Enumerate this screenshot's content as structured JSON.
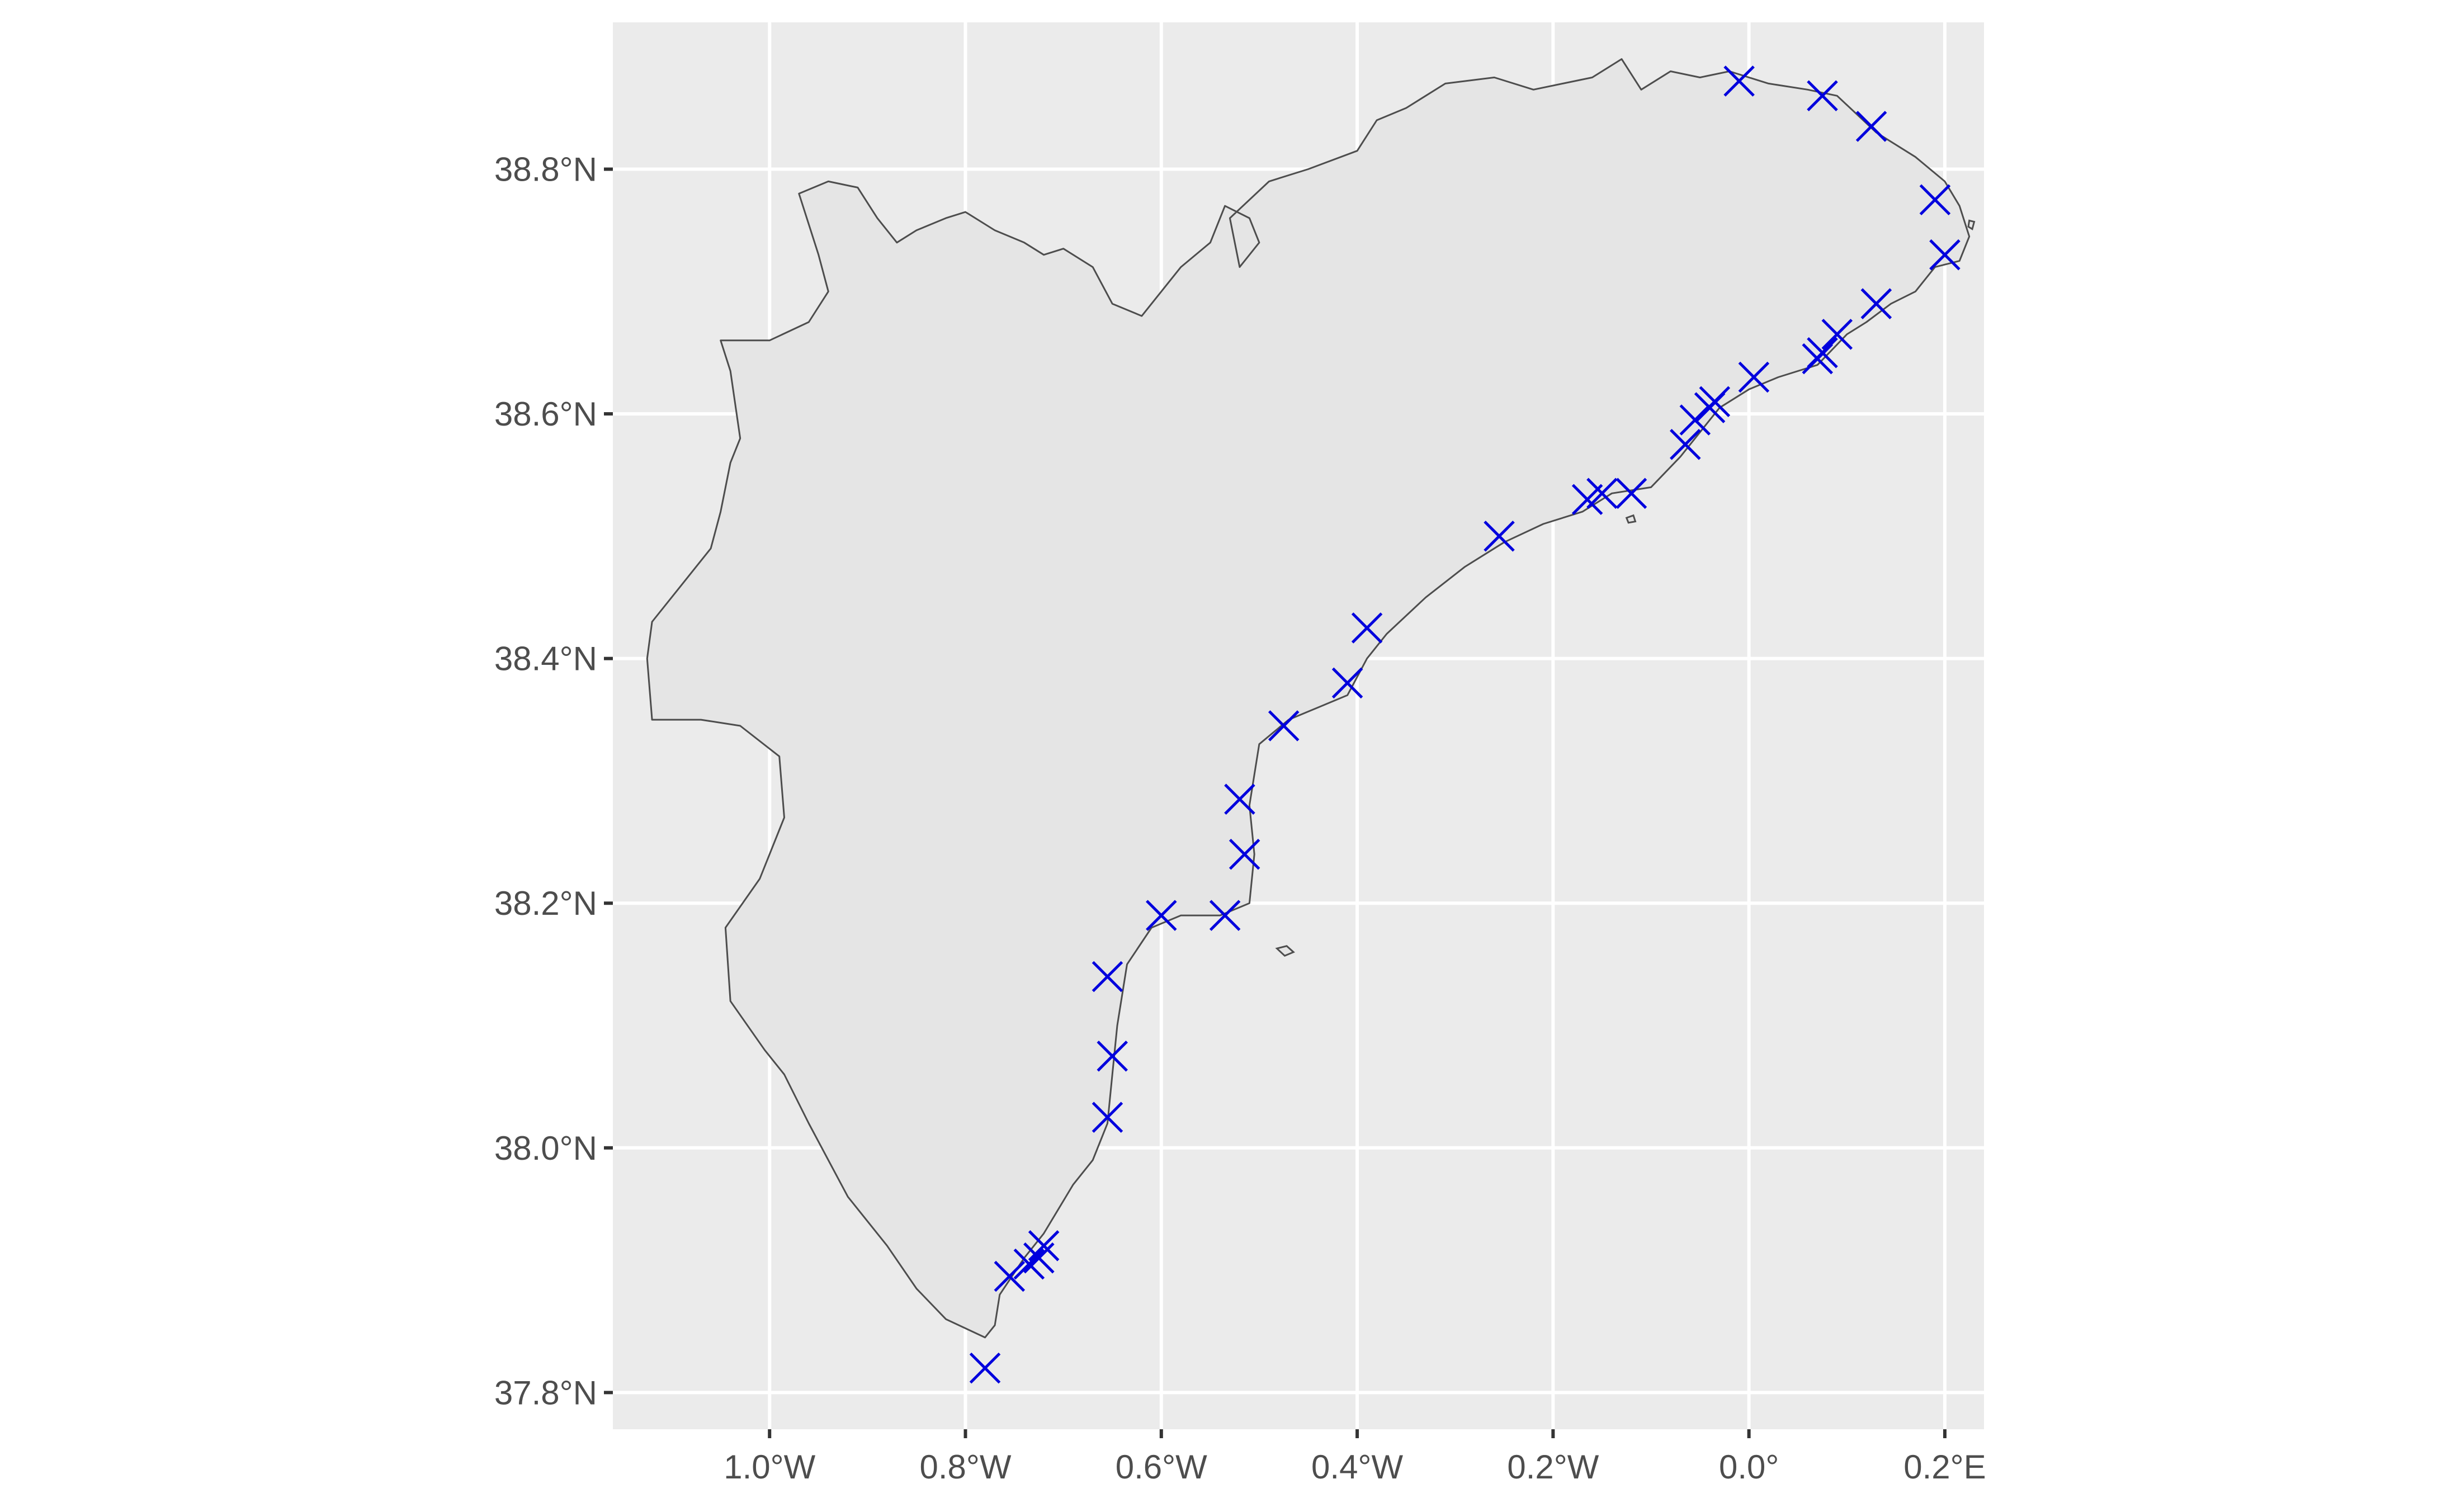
{
  "chart_data": {
    "type": "scatter",
    "title": "",
    "xlabel": "",
    "ylabel": "",
    "xlim": [
      -1.16,
      0.24
    ],
    "ylim": [
      37.77,
      38.92
    ],
    "grid": true,
    "background_color": "#ebebeb",
    "land_color": "#e5e5e5",
    "outline_color": "#4d4d4d",
    "marker": "x",
    "marker_color": "#0000dd",
    "x_ticks": [
      {
        "value": -1.0,
        "label": "1.0°W"
      },
      {
        "value": -0.8,
        "label": "0.8°W"
      },
      {
        "value": -0.6,
        "label": "0.6°W"
      },
      {
        "value": -0.4,
        "label": "0.4°W"
      },
      {
        "value": -0.2,
        "label": "0.2°W"
      },
      {
        "value": 0.0,
        "label": "0.0°"
      },
      {
        "value": 0.2,
        "label": "0.2°E"
      }
    ],
    "y_ticks": [
      {
        "value": 37.8,
        "label": "37.8°N"
      },
      {
        "value": 38.0,
        "label": "38.0°N"
      },
      {
        "value": 38.2,
        "label": "38.2°N"
      },
      {
        "value": 38.4,
        "label": "38.4°N"
      },
      {
        "value": 38.6,
        "label": "38.6°N"
      },
      {
        "value": 38.8,
        "label": "38.8°N"
      }
    ],
    "region_outline": [
      [
        -0.97,
        38.78
      ],
      [
        -0.94,
        38.79
      ],
      [
        -0.91,
        38.785
      ],
      [
        -0.89,
        38.76
      ],
      [
        -0.87,
        38.74
      ],
      [
        -0.85,
        38.75
      ],
      [
        -0.82,
        38.76
      ],
      [
        -0.8,
        38.765
      ],
      [
        -0.77,
        38.75
      ],
      [
        -0.74,
        38.74
      ],
      [
        -0.72,
        38.73
      ],
      [
        -0.7,
        38.735
      ],
      [
        -0.67,
        38.72
      ],
      [
        -0.65,
        38.69
      ],
      [
        -0.62,
        38.68
      ],
      [
        -0.6,
        38.7
      ],
      [
        -0.58,
        38.72
      ],
      [
        -0.55,
        38.74
      ],
      [
        -0.535,
        38.77
      ],
      [
        -0.51,
        38.76
      ],
      [
        -0.5,
        38.74
      ],
      [
        -0.52,
        38.72
      ],
      [
        -0.53,
        38.76
      ],
      [
        -0.49,
        38.79
      ],
      [
        -0.45,
        38.8
      ],
      [
        -0.4,
        38.815
      ],
      [
        -0.38,
        38.84
      ],
      [
        -0.35,
        38.85
      ],
      [
        -0.31,
        38.87
      ],
      [
        -0.26,
        38.875
      ],
      [
        -0.22,
        38.865
      ],
      [
        -0.19,
        38.87
      ],
      [
        -0.16,
        38.875
      ],
      [
        -0.13,
        38.89
      ],
      [
        -0.11,
        38.865
      ],
      [
        -0.08,
        38.88
      ],
      [
        -0.05,
        38.875
      ],
      [
        -0.02,
        38.88
      ],
      [
        0.02,
        38.87
      ],
      [
        0.06,
        38.865
      ],
      [
        0.09,
        38.86
      ],
      [
        0.13,
        38.83
      ],
      [
        0.17,
        38.81
      ],
      [
        0.2,
        38.79
      ],
      [
        0.215,
        38.77
      ],
      [
        0.225,
        38.745
      ],
      [
        0.215,
        38.725
      ],
      [
        0.19,
        38.72
      ],
      [
        0.17,
        38.7
      ],
      [
        0.145,
        38.69
      ],
      [
        0.12,
        38.675
      ],
      [
        0.1,
        38.665
      ],
      [
        0.07,
        38.64
      ],
      [
        0.03,
        38.63
      ],
      [
        0.0,
        38.62
      ],
      [
        -0.03,
        38.605
      ],
      [
        -0.05,
        38.585
      ],
      [
        -0.07,
        38.565
      ],
      [
        -0.1,
        38.54
      ],
      [
        -0.14,
        38.535
      ],
      [
        -0.17,
        38.52
      ],
      [
        -0.21,
        38.51
      ],
      [
        -0.25,
        38.495
      ],
      [
        -0.29,
        38.475
      ],
      [
        -0.33,
        38.45
      ],
      [
        -0.37,
        38.42
      ],
      [
        -0.39,
        38.4
      ],
      [
        -0.41,
        38.37
      ],
      [
        -0.44,
        38.36
      ],
      [
        -0.47,
        38.35
      ],
      [
        -0.5,
        38.33
      ],
      [
        -0.51,
        38.28
      ],
      [
        -0.505,
        38.24
      ],
      [
        -0.51,
        38.2
      ],
      [
        -0.54,
        38.19
      ],
      [
        -0.58,
        38.19
      ],
      [
        -0.61,
        38.18
      ],
      [
        -0.635,
        38.15
      ],
      [
        -0.645,
        38.1
      ],
      [
        -0.65,
        38.06
      ],
      [
        -0.655,
        38.02
      ],
      [
        -0.67,
        37.99
      ],
      [
        -0.69,
        37.97
      ],
      [
        -0.72,
        37.93
      ],
      [
        -0.74,
        37.91
      ],
      [
        -0.765,
        37.88
      ],
      [
        -0.77,
        37.855
      ],
      [
        -0.78,
        37.845
      ],
      [
        -0.82,
        37.86
      ],
      [
        -0.85,
        37.885
      ],
      [
        -0.88,
        37.92
      ],
      [
        -0.92,
        37.96
      ],
      [
        -0.96,
        38.02
      ],
      [
        -0.985,
        38.06
      ],
      [
        -1.005,
        38.08
      ],
      [
        -1.04,
        38.12
      ],
      [
        -1.045,
        38.18
      ],
      [
        -1.01,
        38.22
      ],
      [
        -0.985,
        38.27
      ],
      [
        -0.99,
        38.32
      ],
      [
        -1.03,
        38.345
      ],
      [
        -1.07,
        38.35
      ],
      [
        -1.12,
        38.35
      ],
      [
        -1.125,
        38.4
      ],
      [
        -1.12,
        38.43
      ],
      [
        -1.09,
        38.46
      ],
      [
        -1.06,
        38.49
      ],
      [
        -1.05,
        38.52
      ],
      [
        -1.04,
        38.56
      ],
      [
        -1.03,
        38.58
      ],
      [
        -1.04,
        38.635
      ],
      [
        -1.05,
        38.66
      ],
      [
        -1.0,
        38.66
      ],
      [
        -0.96,
        38.675
      ],
      [
        -0.94,
        38.7
      ],
      [
        -0.95,
        38.73
      ],
      [
        -0.97,
        38.78
      ]
    ],
    "islets": [
      [
        [
          -0.482,
          38.163
        ],
        [
          -0.472,
          38.165
        ],
        [
          -0.465,
          38.16
        ],
        [
          -0.474,
          38.157
        ],
        [
          -0.482,
          38.163
        ]
      ],
      [
        [
          -0.125,
          38.515
        ],
        [
          -0.118,
          38.517
        ],
        [
          -0.116,
          38.512
        ],
        [
          -0.123,
          38.511
        ],
        [
          -0.125,
          38.515
        ]
      ],
      [
        [
          0.225,
          38.758
        ],
        [
          0.23,
          38.757
        ],
        [
          0.228,
          38.751
        ],
        [
          0.224,
          38.753
        ],
        [
          0.225,
          38.758
        ]
      ]
    ],
    "points": [
      {
        "x": -0.78,
        "y": 37.82
      },
      {
        "x": -0.755,
        "y": 37.895
      },
      {
        "x": -0.735,
        "y": 37.905
      },
      {
        "x": -0.725,
        "y": 37.91
      },
      {
        "x": -0.72,
        "y": 37.92
      },
      {
        "x": -0.655,
        "y": 38.025
      },
      {
        "x": -0.65,
        "y": 38.075
      },
      {
        "x": -0.655,
        "y": 38.14
      },
      {
        "x": -0.6,
        "y": 38.19
      },
      {
        "x": -0.535,
        "y": 38.19
      },
      {
        "x": -0.515,
        "y": 38.24
      },
      {
        "x": -0.52,
        "y": 38.285
      },
      {
        "x": -0.475,
        "y": 38.345
      },
      {
        "x": -0.41,
        "y": 38.38
      },
      {
        "x": -0.39,
        "y": 38.425
      },
      {
        "x": -0.255,
        "y": 38.5
      },
      {
        "x": -0.165,
        "y": 38.53
      },
      {
        "x": -0.15,
        "y": 38.535
      },
      {
        "x": -0.12,
        "y": 38.535
      },
      {
        "x": -0.065,
        "y": 38.575
      },
      {
        "x": -0.055,
        "y": 38.595
      },
      {
        "x": -0.04,
        "y": 38.605
      },
      {
        "x": -0.035,
        "y": 38.61
      },
      {
        "x": 0.005,
        "y": 38.63
      },
      {
        "x": 0.07,
        "y": 38.645
      },
      {
        "x": 0.075,
        "y": 38.65
      },
      {
        "x": 0.09,
        "y": 38.665
      },
      {
        "x": 0.13,
        "y": 38.69
      },
      {
        "x": 0.2,
        "y": 38.73
      },
      {
        "x": 0.19,
        "y": 38.775
      },
      {
        "x": 0.125,
        "y": 38.835
      },
      {
        "x": 0.075,
        "y": 38.86
      },
      {
        "x": -0.01,
        "y": 38.872
      }
    ]
  }
}
